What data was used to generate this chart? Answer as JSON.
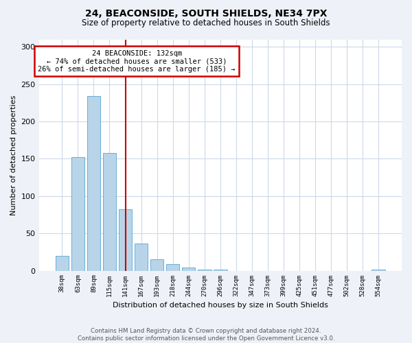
{
  "title": "24, BEACONSIDE, SOUTH SHIELDS, NE34 7PX",
  "subtitle": "Size of property relative to detached houses in South Shields",
  "xlabel": "Distribution of detached houses by size in South Shields",
  "ylabel": "Number of detached properties",
  "bar_labels": [
    "38sqm",
    "63sqm",
    "89sqm",
    "115sqm",
    "141sqm",
    "167sqm",
    "193sqm",
    "218sqm",
    "244sqm",
    "270sqm",
    "296sqm",
    "322sqm",
    "347sqm",
    "373sqm",
    "399sqm",
    "425sqm",
    "451sqm",
    "477sqm",
    "502sqm",
    "528sqm",
    "554sqm"
  ],
  "bar_values": [
    20,
    152,
    234,
    158,
    82,
    36,
    15,
    9,
    4,
    1,
    1,
    0,
    0,
    0,
    0,
    0,
    0,
    0,
    0,
    0,
    1
  ],
  "bar_color": "#b8d4e8",
  "bar_edge_color": "#6aaed6",
  "redline_x": 4.0,
  "annotation_title": "24 BEACONSIDE: 132sqm",
  "annotation_line1": "← 74% of detached houses are smaller (533)",
  "annotation_line2": "26% of semi-detached houses are larger (185) →",
  "annotation_box_color": "#ffffff",
  "annotation_box_edge": "#cc0000",
  "redline_color": "#cc0000",
  "ylim": [
    0,
    310
  ],
  "yticks": [
    0,
    50,
    100,
    150,
    200,
    250,
    300
  ],
  "footer_line1": "Contains HM Land Registry data © Crown copyright and database right 2024.",
  "footer_line2": "Contains public sector information licensed under the Open Government Licence v3.0.",
  "bg_color": "#eef2f8",
  "plot_bg_color": "#ffffff",
  "grid_color": "#ccd8e8"
}
